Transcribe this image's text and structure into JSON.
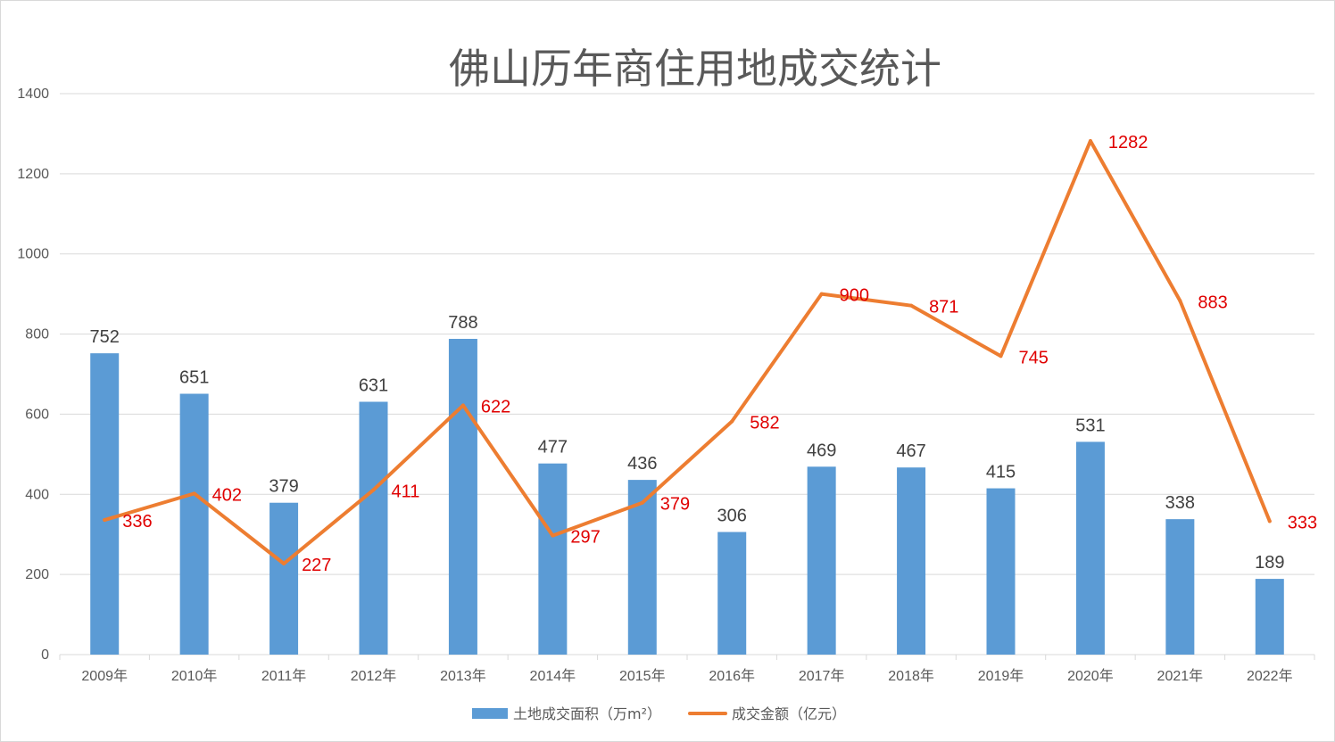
{
  "chart_data": {
    "type": "bar",
    "title": "佛山历年商住用地成交统计",
    "categories": [
      "2009年",
      "2010年",
      "2011年",
      "2012年",
      "2013年",
      "2014年",
      "2015年",
      "2016年",
      "2017年",
      "2018年",
      "2019年",
      "2020年",
      "2021年",
      "2022年"
    ],
    "series": [
      {
        "name": "土地成交面积（万m²）",
        "type": "bar",
        "color": "#5b9bd5",
        "values": [
          752,
          651,
          379,
          631,
          788,
          477,
          436,
          306,
          469,
          467,
          415,
          531,
          338,
          189
        ]
      },
      {
        "name": "成交金额（亿元）",
        "type": "line",
        "color": "#ed7d31",
        "values": [
          336,
          402,
          227,
          411,
          622,
          297,
          379,
          582,
          900,
          871,
          745,
          1282,
          883,
          333
        ]
      }
    ],
    "ylim": [
      0,
      1400
    ],
    "yticks": [
      0,
      200,
      400,
      600,
      800,
      1000,
      1200,
      1400
    ],
    "xlabel": "",
    "ylabel": "",
    "grid": true,
    "legend": "bottom",
    "colors": {
      "bar_label": "#404040",
      "line_label": "#e00000",
      "grid": "#d9d9d9",
      "text": "#595959"
    }
  }
}
